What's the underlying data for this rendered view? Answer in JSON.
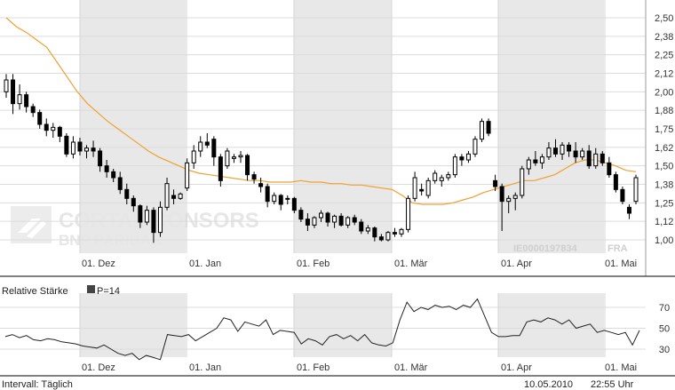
{
  "chart_data": [
    {
      "type": "candlestick",
      "title": "",
      "instrument": {
        "isin": "IE0000197834",
        "exchange": "FRA"
      },
      "watermark": {
        "line1": "CORTAL CONSORS",
        "line2": "BNP PARIBAS"
      },
      "x_ticks": [
        "01. Dez",
        "01. Jan",
        "01. Feb",
        "01. Mär",
        "01. Apr",
        "01. Mai"
      ],
      "y_ticks": [
        "2,50",
        "2,38",
        "2,25",
        "2,12",
        "2,00",
        "1,88",
        "1,75",
        "1,62",
        "1,50",
        "1,38",
        "1,25",
        "1,12",
        "1,00"
      ],
      "ylim": [
        0.94,
        2.53
      ],
      "grid": true,
      "colors": {
        "up_body": "#ffffff",
        "down_body": "#000000",
        "moving_average": "#f0a030",
        "month_band": "#e8e8e8"
      },
      "ohlc": [
        [
          2.0,
          2.12,
          1.96,
          2.08
        ],
        [
          2.08,
          2.12,
          1.85,
          1.92
        ],
        [
          1.92,
          2.05,
          1.88,
          1.98
        ],
        [
          1.98,
          2.0,
          1.86,
          1.9
        ],
        [
          1.9,
          1.92,
          1.83,
          1.86
        ],
        [
          1.86,
          1.88,
          1.75,
          1.78
        ],
        [
          1.78,
          1.82,
          1.7,
          1.74
        ],
        [
          1.74,
          1.79,
          1.69,
          1.76
        ],
        [
          1.76,
          1.77,
          1.66,
          1.7
        ],
        [
          1.7,
          1.72,
          1.56,
          1.58
        ],
        [
          1.58,
          1.7,
          1.55,
          1.66
        ],
        [
          1.66,
          1.69,
          1.57,
          1.6
        ],
        [
          1.6,
          1.64,
          1.55,
          1.62
        ],
        [
          1.62,
          1.67,
          1.56,
          1.6
        ],
        [
          1.6,
          1.62,
          1.46,
          1.5
        ],
        [
          1.5,
          1.54,
          1.42,
          1.46
        ],
        [
          1.46,
          1.48,
          1.39,
          1.42
        ],
        [
          1.42,
          1.46,
          1.31,
          1.34
        ],
        [
          1.34,
          1.38,
          1.24,
          1.28
        ],
        [
          1.28,
          1.3,
          1.19,
          1.23
        ],
        [
          1.23,
          1.24,
          1.08,
          1.12
        ],
        [
          1.12,
          1.23,
          1.1,
          1.2
        ],
        [
          1.2,
          1.22,
          0.98,
          1.05
        ],
        [
          1.05,
          1.26,
          1.02,
          1.22
        ],
        [
          1.22,
          1.42,
          1.2,
          1.38
        ],
        [
          1.3,
          1.34,
          1.24,
          1.28
        ],
        [
          1.28,
          1.32,
          1.27,
          1.31
        ],
        [
          1.35,
          1.55,
          1.33,
          1.52
        ],
        [
          1.52,
          1.64,
          1.48,
          1.6
        ],
        [
          1.6,
          1.7,
          1.56,
          1.66
        ],
        [
          1.66,
          1.72,
          1.62,
          1.64
        ],
        [
          1.68,
          1.7,
          1.5,
          1.56
        ],
        [
          1.56,
          1.58,
          1.36,
          1.4
        ],
        [
          1.5,
          1.62,
          1.48,
          1.6
        ],
        [
          1.55,
          1.58,
          1.52,
          1.56
        ],
        [
          1.56,
          1.6,
          1.52,
          1.57
        ],
        [
          1.57,
          1.58,
          1.4,
          1.44
        ],
        [
          1.44,
          1.46,
          1.38,
          1.41
        ],
        [
          1.38,
          1.42,
          1.32,
          1.36
        ],
        [
          1.36,
          1.38,
          1.22,
          1.26
        ],
        [
          1.26,
          1.32,
          1.24,
          1.3
        ],
        [
          1.3,
          1.31,
          1.2,
          1.24
        ],
        [
          1.28,
          1.3,
          1.24,
          1.28
        ],
        [
          1.28,
          1.29,
          1.18,
          1.2
        ],
        [
          1.2,
          1.22,
          1.12,
          1.14
        ],
        [
          1.14,
          1.18,
          1.06,
          1.1
        ],
        [
          1.1,
          1.16,
          1.08,
          1.15
        ],
        [
          1.15,
          1.2,
          1.12,
          1.18
        ],
        [
          1.18,
          1.19,
          1.09,
          1.12
        ],
        [
          1.12,
          1.17,
          1.08,
          1.16
        ],
        [
          1.16,
          1.18,
          1.09,
          1.1
        ],
        [
          1.1,
          1.16,
          1.08,
          1.15
        ],
        [
          1.15,
          1.17,
          1.1,
          1.12
        ],
        [
          1.12,
          1.14,
          1.04,
          1.06
        ],
        [
          1.06,
          1.1,
          1.04,
          1.08
        ],
        [
          1.08,
          1.09,
          0.99,
          1.02
        ],
        [
          1.02,
          1.04,
          0.99,
          1.0
        ],
        [
          1.0,
          1.06,
          0.99,
          1.05
        ],
        [
          1.05,
          1.08,
          1.02,
          1.04
        ],
        [
          1.04,
          1.08,
          1.02,
          1.07
        ],
        [
          1.07,
          1.3,
          1.05,
          1.28
        ],
        [
          1.28,
          1.46,
          1.26,
          1.42
        ],
        [
          1.34,
          1.38,
          1.3,
          1.33
        ],
        [
          1.3,
          1.42,
          1.28,
          1.4
        ],
        [
          1.4,
          1.47,
          1.38,
          1.45
        ],
        [
          1.4,
          1.44,
          1.36,
          1.42
        ],
        [
          1.42,
          1.46,
          1.4,
          1.44
        ],
        [
          1.44,
          1.58,
          1.42,
          1.56
        ],
        [
          1.56,
          1.58,
          1.5,
          1.54
        ],
        [
          1.54,
          1.6,
          1.52,
          1.58
        ],
        [
          1.58,
          1.7,
          1.56,
          1.68
        ],
        [
          1.68,
          1.82,
          1.66,
          1.8
        ],
        [
          1.8,
          1.82,
          1.7,
          1.72
        ],
        [
          1.4,
          1.44,
          1.33,
          1.36
        ],
        [
          1.36,
          1.38,
          1.06,
          1.26
        ],
        [
          1.26,
          1.3,
          1.18,
          1.28
        ],
        [
          1.28,
          1.32,
          1.2,
          1.3
        ],
        [
          1.3,
          1.5,
          1.28,
          1.48
        ],
        [
          1.48,
          1.56,
          1.44,
          1.54
        ],
        [
          1.54,
          1.6,
          1.5,
          1.52
        ],
        [
          1.52,
          1.58,
          1.48,
          1.56
        ],
        [
          1.56,
          1.66,
          1.54,
          1.62
        ],
        [
          1.62,
          1.68,
          1.56,
          1.58
        ],
        [
          1.58,
          1.66,
          1.54,
          1.64
        ],
        [
          1.64,
          1.66,
          1.56,
          1.6
        ],
        [
          1.6,
          1.66,
          1.52,
          1.56
        ],
        [
          1.56,
          1.62,
          1.54,
          1.6
        ],
        [
          1.6,
          1.64,
          1.48,
          1.5
        ],
        [
          1.5,
          1.62,
          1.48,
          1.58
        ],
        [
          1.58,
          1.6,
          1.5,
          1.52
        ],
        [
          1.52,
          1.56,
          1.42,
          1.44
        ],
        [
          1.44,
          1.46,
          1.32,
          1.34
        ],
        [
          1.34,
          1.36,
          1.24,
          1.26
        ],
        [
          1.22,
          1.24,
          1.14,
          1.18
        ],
        [
          1.26,
          1.44,
          1.24,
          1.42
        ]
      ],
      "moving_average": [
        2.5,
        2.44,
        2.4,
        2.35,
        2.3,
        2.2,
        2.1,
        2.0,
        1.92,
        1.86,
        1.8,
        1.75,
        1.7,
        1.65,
        1.6,
        1.56,
        1.53,
        1.5,
        1.47,
        1.45,
        1.44,
        1.43,
        1.42,
        1.41,
        1.4,
        1.4,
        1.39,
        1.39,
        1.39,
        1.4,
        1.39,
        1.39,
        1.38,
        1.38,
        1.37,
        1.37,
        1.36,
        1.35,
        1.34,
        1.3,
        1.25,
        1.24,
        1.24,
        1.24,
        1.25,
        1.27,
        1.29,
        1.32,
        1.34,
        1.36,
        1.38,
        1.4,
        1.4,
        1.42,
        1.44,
        1.48,
        1.52,
        1.54,
        1.54,
        1.52,
        1.5,
        1.47,
        1.46
      ]
    },
    {
      "type": "line",
      "title": "Relative Stärke",
      "legend": [
        "P=14"
      ],
      "x_ticks": [
        "01. Dez",
        "01. Jan",
        "01. Feb",
        "01. Mär",
        "01. Apr",
        "01. Mai"
      ],
      "y_ticks": [
        "70",
        "50",
        "30"
      ],
      "ylim": [
        18,
        82
      ],
      "grid": true,
      "series": [
        {
          "name": "P=14",
          "values": [
            42,
            44,
            41,
            43,
            39,
            38,
            40,
            39,
            37,
            36,
            35,
            33,
            32,
            31,
            34,
            30,
            26,
            24,
            26,
            20,
            24,
            22,
            20,
            44,
            43,
            42,
            44,
            38,
            42,
            46,
            50,
            60,
            58,
            47,
            56,
            54,
            52,
            58,
            44,
            48,
            47,
            46,
            35,
            40,
            38,
            34,
            42,
            44,
            40,
            43,
            38,
            44,
            36,
            34,
            33,
            36,
            58,
            75,
            66,
            70,
            68,
            72,
            70,
            71,
            68,
            72,
            70,
            78,
            62,
            46,
            42,
            42,
            43,
            43,
            56,
            58,
            56,
            60,
            58,
            54,
            58,
            50,
            52,
            54,
            46,
            48,
            46,
            44,
            46,
            34,
            48
          ]
        }
      ]
    }
  ],
  "footer": {
    "interval": "Intervall: Täglich",
    "date": "10.05.2010",
    "time": "22:55 Uhr"
  }
}
